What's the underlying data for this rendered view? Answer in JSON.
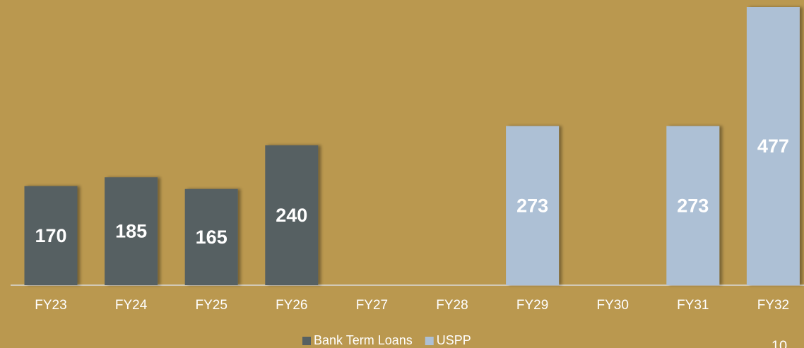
{
  "chart_data": {
    "type": "bar",
    "categories": [
      "FY23",
      "FY24",
      "FY25",
      "FY26",
      "FY27",
      "FY28",
      "FY29",
      "FY30",
      "FY31",
      "FY32"
    ],
    "series": [
      {
        "name": "Bank Term Loans",
        "color": "#566062",
        "values": [
          170,
          185,
          165,
          240,
          null,
          null,
          null,
          null,
          null,
          null
        ]
      },
      {
        "name": "USPP",
        "color": "#adc0d5",
        "values": [
          null,
          null,
          null,
          null,
          null,
          null,
          273,
          null,
          273,
          477
        ]
      }
    ],
    "legend": "bottom"
  },
  "page_number": "10"
}
